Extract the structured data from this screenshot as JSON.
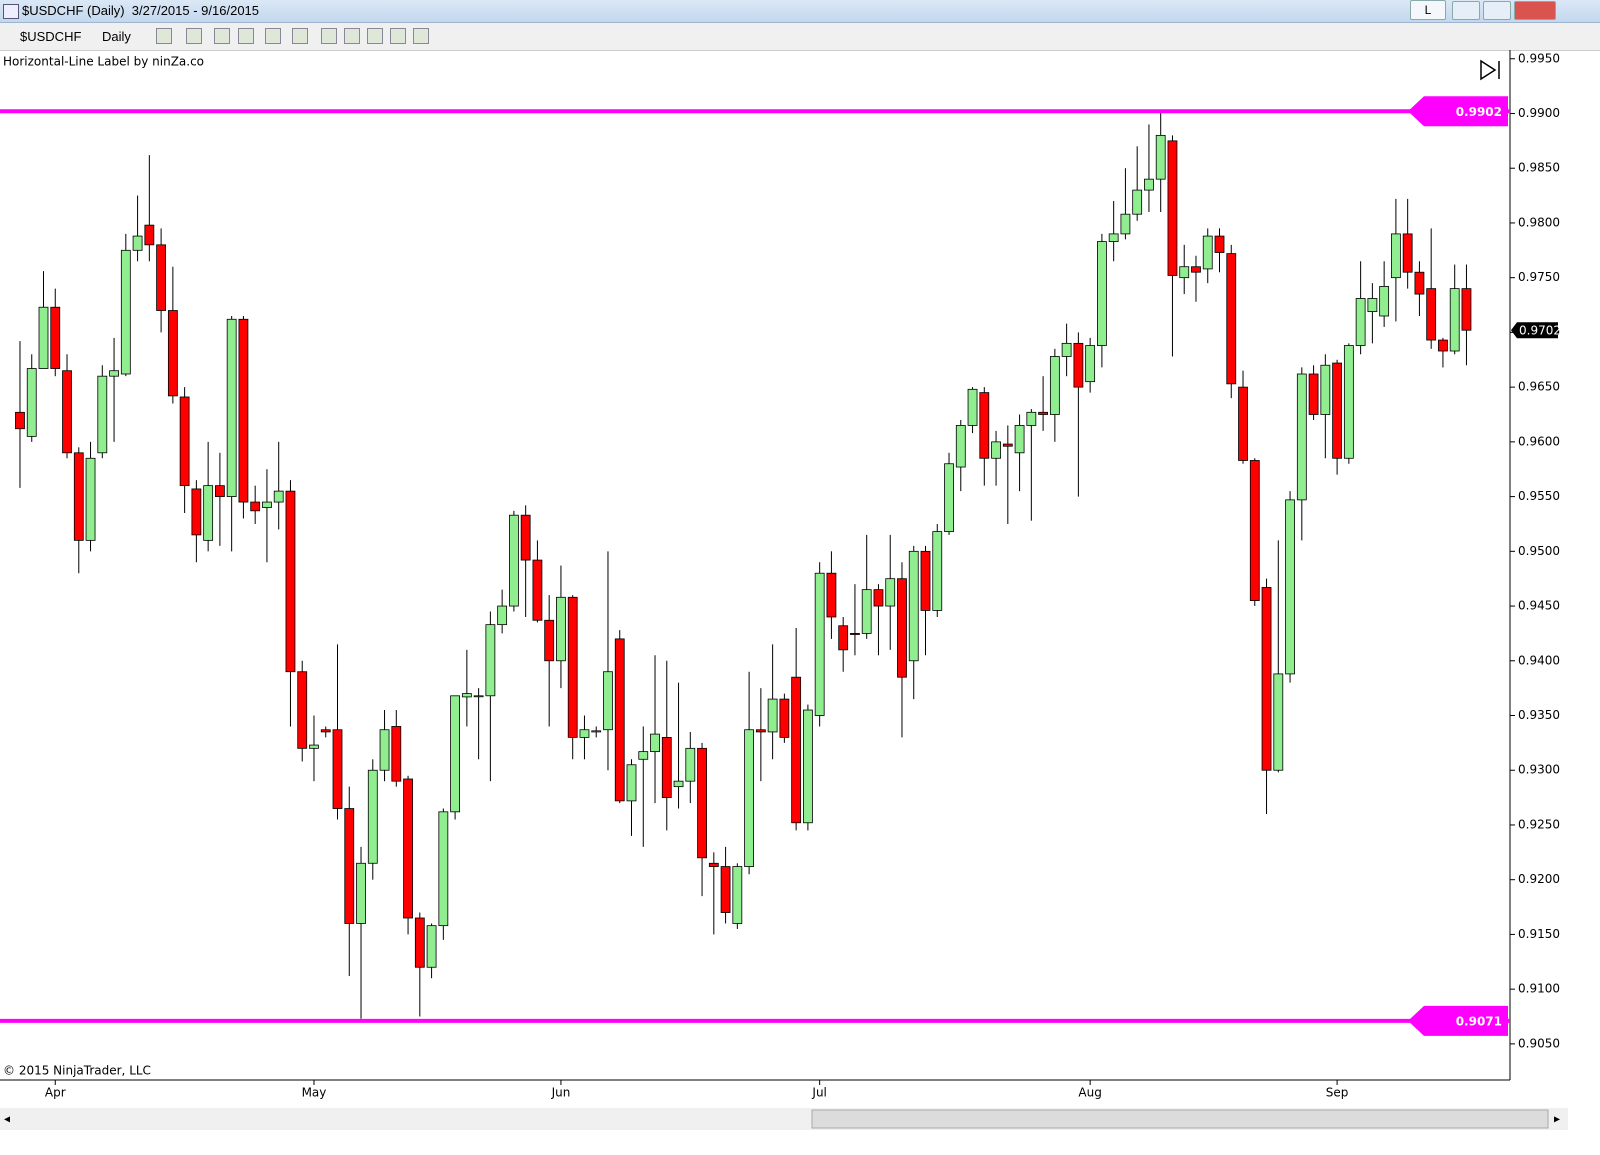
{
  "window": {
    "title": "$USDCHF (Daily)  3/27/2015 - 9/16/2015",
    "instrument": "$USDCHF",
    "interval": "Daily",
    "layout_button": "L"
  },
  "chart_data": {
    "type": "candlestick",
    "indicator_label": "Horizontal-Line Label by ninZa.co",
    "copyright": "© 2015 NinjaTrader, LLC",
    "categories": [
      null,
      null,
      null,
      "Apr",
      null,
      null,
      null,
      null,
      null,
      null,
      null,
      null,
      null,
      null,
      null,
      null,
      null,
      null,
      null,
      null,
      null,
      null,
      null,
      null,
      null,
      "May",
      null,
      null,
      null,
      null,
      null,
      null,
      null,
      null,
      null,
      null,
      null,
      null,
      null,
      null,
      null,
      null,
      null,
      null,
      null,
      null,
      "Jun",
      null,
      null,
      null,
      null,
      null,
      null,
      null,
      null,
      null,
      null,
      null,
      null,
      null,
      null,
      null,
      null,
      null,
      null,
      null,
      null,
      null,
      "Jul",
      null,
      null,
      null,
      null,
      null,
      null,
      null,
      null,
      null,
      null,
      null,
      null,
      null,
      null,
      null,
      null,
      null,
      null,
      null,
      null,
      null,
      null,
      "Aug",
      null,
      null,
      null,
      null,
      null,
      null,
      null,
      null,
      null,
      null,
      null,
      null,
      null,
      null,
      null,
      null,
      null,
      null,
      null,
      null,
      "Sep",
      null,
      null,
      null,
      null,
      null,
      null,
      null,
      null,
      null,
      null,
      null
    ],
    "open": [
      0.9627,
      0.9605,
      0.9667,
      0.9723,
      0.9665,
      0.959,
      0.951,
      0.959,
      0.966,
      0.9662,
      0.9775,
      0.9798,
      0.978,
      0.972,
      0.9641,
      0.9557,
      0.951,
      0.956,
      0.955,
      0.9712,
      0.9545,
      0.954,
      0.9545,
      0.9555,
      0.939,
      0.932,
      0.9337,
      0.9337,
      0.9265,
      0.916,
      0.9215,
      0.93,
      0.934,
      0.9292,
      0.9165,
      0.912,
      0.9158,
      0.9262,
      0.9367,
      0.9368,
      0.9368,
      0.9433,
      0.945,
      0.9533,
      0.9492,
      0.9437,
      0.94,
      0.9458,
      0.933,
      0.9335,
      0.9337,
      0.942,
      0.9272,
      0.931,
      0.9317,
      0.933,
      0.9285,
      0.929,
      0.932,
      0.9215,
      0.9212,
      0.916,
      0.9212,
      0.9337,
      0.9335,
      0.9365,
      0.9385,
      0.9252,
      0.935,
      0.948,
      0.9432,
      0.9425,
      0.9425,
      0.9465,
      0.945,
      0.9475,
      0.94,
      0.95,
      0.9446,
      0.9518,
      0.9577,
      0.9615,
      0.9645,
      0.9585,
      0.9598,
      0.959,
      0.9615,
      0.9627,
      0.9625,
      0.9678,
      0.969,
      0.9655,
      0.9688,
      0.9783,
      0.979,
      0.9808,
      0.983,
      0.984,
      0.9875,
      0.975,
      0.976,
      0.9758,
      0.9788,
      0.9772,
      0.965,
      0.9583,
      0.9467,
      0.93,
      0.9388,
      0.9547,
      0.9662,
      0.9625,
      0.9672,
      0.9585,
      0.9688,
      0.9719,
      0.9715,
      0.975,
      0.979,
      0.9755,
      0.974,
      0.9693,
      0.9683,
      0.974
    ],
    "high": [
      0.9692,
      0.968,
      0.9756,
      0.974,
      0.968,
      0.9595,
      0.96,
      0.967,
      0.9695,
      0.979,
      0.9825,
      0.9862,
      0.9795,
      0.976,
      0.965,
      0.9565,
      0.96,
      0.959,
      0.9715,
      0.9715,
      0.956,
      0.9575,
      0.96,
      0.9565,
      0.94,
      0.935,
      0.934,
      0.9415,
      0.9285,
      0.923,
      0.931,
      0.9355,
      0.9355,
      0.9295,
      0.917,
      0.916,
      0.9265,
      0.9368,
      0.941,
      0.9375,
      0.9445,
      0.9465,
      0.9537,
      0.9542,
      0.951,
      0.946,
      0.9487,
      0.946,
      0.935,
      0.934,
      0.95,
      0.9428,
      0.931,
      0.934,
      0.9405,
      0.94,
      0.938,
      0.9335,
      0.9325,
      0.9225,
      0.923,
      0.9215,
      0.939,
      0.9375,
      0.9415,
      0.937,
      0.943,
      0.936,
      0.949,
      0.95,
      0.944,
      0.947,
      0.9515,
      0.947,
      0.9515,
      0.949,
      0.9505,
      0.9505,
      0.9525,
      0.959,
      0.962,
      0.965,
      0.965,
      0.961,
      0.9615,
      0.9625,
      0.963,
      0.966,
      0.9685,
      0.9708,
      0.97,
      0.9695,
      0.979,
      0.982,
      0.985,
      0.987,
      0.989,
      0.9902,
      0.988,
      0.978,
      0.977,
      0.9795,
      0.9795,
      0.978,
      0.9665,
      0.9585,
      0.9475,
      0.951,
      0.9555,
      0.9668,
      0.967,
      0.968,
      0.9675,
      0.969,
      0.9765,
      0.9745,
      0.9765,
      0.9822,
      0.9822,
      0.9765,
      0.9795,
      0.9695,
      0.9762,
      0.9762
    ],
    "low": [
      0.9558,
      0.96,
      0.9667,
      0.966,
      0.9585,
      0.948,
      0.95,
      0.9585,
      0.96,
      0.966,
      0.9765,
      0.9765,
      0.97,
      0.9635,
      0.9535,
      0.949,
      0.95,
      0.9505,
      0.95,
      0.953,
      0.9525,
      0.949,
      0.952,
      0.934,
      0.9308,
      0.929,
      0.933,
      0.9255,
      0.9112,
      0.9073,
      0.92,
      0.929,
      0.9285,
      0.915,
      0.9075,
      0.911,
      0.9145,
      0.9255,
      0.934,
      0.931,
      0.929,
      0.9425,
      0.9445,
      0.944,
      0.9435,
      0.934,
      0.9375,
      0.931,
      0.931,
      0.933,
      0.93,
      0.927,
      0.924,
      0.923,
      0.927,
      0.9245,
      0.9265,
      0.927,
      0.9185,
      0.915,
      0.916,
      0.9155,
      0.9205,
      0.929,
      0.931,
      0.9325,
      0.9245,
      0.9245,
      0.934,
      0.942,
      0.939,
      0.9405,
      0.942,
      0.9405,
      0.941,
      0.933,
      0.9365,
      0.9405,
      0.944,
      0.9515,
      0.9555,
      0.9608,
      0.956,
      0.956,
      0.9525,
      0.9555,
      0.9528,
      0.961,
      0.96,
      0.966,
      0.955,
      0.9645,
      0.9668,
      0.9765,
      0.9785,
      0.9802,
      0.981,
      0.981,
      0.9678,
      0.9735,
      0.9728,
      0.9745,
      0.9755,
      0.964,
      0.958,
      0.945,
      0.926,
      0.9298,
      0.938,
      0.951,
      0.962,
      0.9585,
      0.957,
      0.958,
      0.968,
      0.969,
      0.9705,
      0.971,
      0.974,
      0.9715,
      0.9685,
      0.9668,
      0.968,
      0.967
    ],
    "close": [
      0.9612,
      0.9667,
      0.9723,
      0.9667,
      0.959,
      0.951,
      0.9585,
      0.966,
      0.9665,
      0.9775,
      0.9788,
      0.978,
      0.972,
      0.9642,
      0.956,
      0.9515,
      0.956,
      0.955,
      0.9712,
      0.9545,
      0.9537,
      0.9545,
      0.9555,
      0.939,
      0.932,
      0.9323,
      0.9335,
      0.9265,
      0.916,
      0.9215,
      0.93,
      0.9337,
      0.929,
      0.9165,
      0.912,
      0.9158,
      0.9262,
      0.9368,
      0.937,
      0.9368,
      0.9433,
      0.945,
      0.9533,
      0.9492,
      0.9437,
      0.94,
      0.9458,
      0.933,
      0.9337,
      0.9336,
      0.939,
      0.9272,
      0.9305,
      0.9317,
      0.9333,
      0.9275,
      0.929,
      0.932,
      0.922,
      0.9212,
      0.917,
      0.9212,
      0.9337,
      0.9335,
      0.9365,
      0.933,
      0.9252,
      0.9355,
      0.948,
      0.944,
      0.941,
      0.9424,
      0.9465,
      0.945,
      0.9475,
      0.9385,
      0.95,
      0.9446,
      0.9518,
      0.958,
      0.9615,
      0.9648,
      0.9585,
      0.96,
      0.9596,
      0.9615,
      0.9627,
      0.9625,
      0.9678,
      0.969,
      0.965,
      0.9688,
      0.9783,
      0.979,
      0.9808,
      0.983,
      0.984,
      0.988,
      0.9752,
      0.976,
      0.9755,
      0.9788,
      0.9773,
      0.9653,
      0.9583,
      0.9455,
      0.93,
      0.9388,
      0.9547,
      0.9662,
      0.9625,
      0.967,
      0.9585,
      0.9688,
      0.9731,
      0.9731,
      0.9742,
      0.979,
      0.9755,
      0.9735,
      0.9693,
      0.9683,
      0.974,
      0.9702
    ],
    "up_color": "#90ee90",
    "down_color": "#ff0000",
    "hlines": [
      {
        "value": 0.9902,
        "color": "#ff00ff"
      },
      {
        "value": 0.9071,
        "color": "#ff00ff"
      }
    ],
    "ylim": [
      0.9017,
      0.9958
    ],
    "yticks": [
      {
        "value": 0.905,
        "label": "0.9050"
      },
      {
        "value": 0.91,
        "label": "0.9100"
      },
      {
        "value": 0.915,
        "label": "0.9150"
      },
      {
        "value": 0.92,
        "label": "0.9200"
      },
      {
        "value": 0.925,
        "label": "0.9250"
      },
      {
        "value": 0.93,
        "label": "0.9300"
      },
      {
        "value": 0.935,
        "label": "0.9350"
      },
      {
        "value": 0.94,
        "label": "0.9400"
      },
      {
        "value": 0.945,
        "label": "0.9450"
      },
      {
        "value": 0.95,
        "label": "0.9500"
      },
      {
        "value": 0.955,
        "label": "0.9550"
      },
      {
        "value": 0.96,
        "label": "0.9600"
      },
      {
        "value": 0.965,
        "label": "0.9650"
      },
      {
        "value": 0.97,
        "label": "0.9700"
      },
      {
        "value": 0.975,
        "label": "0.9750"
      },
      {
        "value": 0.98,
        "label": "0.9800"
      },
      {
        "value": 0.985,
        "label": "0.9850"
      },
      {
        "value": 0.99,
        "label": "0.9900"
      },
      {
        "value": 0.995,
        "label": "0.9950"
      }
    ],
    "grid": false
  }
}
